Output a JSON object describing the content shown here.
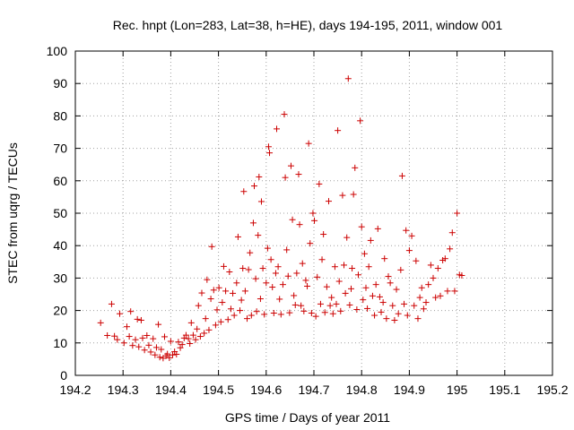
{
  "chart_data": {
    "type": "scatter",
    "title": "Rec. hnpt (Lon=283, Lat=38, h=HE), days 194-195, 2011, window 001",
    "xlabel": "GPS time / Days of year 2011",
    "ylabel": "STEC from uqrg / TECUs",
    "xlim": [
      194.2,
      195.2
    ],
    "ylim": [
      0,
      100
    ],
    "xticks": [
      194.2,
      194.3,
      194.4,
      194.5,
      194.6,
      194.7,
      194.8,
      194.9,
      195,
      195.1,
      195.2
    ],
    "xtick_labels": [
      "194.2",
      "194.3",
      "194.4",
      "194.5",
      "194.6",
      "194.7",
      "194.8",
      "194.9",
      "195",
      "195.1",
      "195.2"
    ],
    "yticks": [
      0,
      10,
      20,
      30,
      40,
      50,
      60,
      70,
      80,
      90,
      100
    ],
    "ytick_labels": [
      "0",
      "10",
      "20",
      "30",
      "40",
      "50",
      "60",
      "70",
      "80",
      "90",
      "100"
    ],
    "grid": true,
    "legend": "none",
    "marker": "plus",
    "color": "#cc0000",
    "series": [
      {
        "name": "STEC",
        "points": [
          [
            194.253,
            16.2
          ],
          [
            194.267,
            12.3
          ],
          [
            194.276,
            22.0
          ],
          [
            194.282,
            12.1
          ],
          [
            194.288,
            11.0
          ],
          [
            194.293,
            19.0
          ],
          [
            194.302,
            10.0
          ],
          [
            194.308,
            15.0
          ],
          [
            194.313,
            12.0
          ],
          [
            194.316,
            19.7
          ],
          [
            194.32,
            9.2
          ],
          [
            194.326,
            11.0
          ],
          [
            194.33,
            17.3
          ],
          [
            194.333,
            8.8
          ],
          [
            194.338,
            17.0
          ],
          [
            194.341,
            11.5
          ],
          [
            194.345,
            7.8
          ],
          [
            194.35,
            12.3
          ],
          [
            194.354,
            9.3
          ],
          [
            194.358,
            7.2
          ],
          [
            194.363,
            11.3
          ],
          [
            194.367,
            6.3
          ],
          [
            194.37,
            8.6
          ],
          [
            194.374,
            15.7
          ],
          [
            194.377,
            5.6
          ],
          [
            194.38,
            8.0
          ],
          [
            194.384,
            5.3
          ],
          [
            194.387,
            11.9
          ],
          [
            194.39,
            6.0
          ],
          [
            194.393,
            6.6
          ],
          [
            194.397,
            5.4
          ],
          [
            194.4,
            10.5
          ],
          [
            194.404,
            6.3
          ],
          [
            194.408,
            7.3
          ],
          [
            194.412,
            6.5
          ],
          [
            194.416,
            10.3
          ],
          [
            194.42,
            8.5
          ],
          [
            194.424,
            9.5
          ],
          [
            194.428,
            11.5
          ],
          [
            194.432,
            12.4
          ],
          [
            194.437,
            11.3
          ],
          [
            194.44,
            9.8
          ],
          [
            194.443,
            16.2
          ],
          [
            194.447,
            12.4
          ],
          [
            194.452,
            11.0
          ],
          [
            194.455,
            14.3
          ],
          [
            194.458,
            21.5
          ],
          [
            194.462,
            12.0
          ],
          [
            194.465,
            25.4
          ],
          [
            194.47,
            13.0
          ],
          [
            194.473,
            17.5
          ],
          [
            194.476,
            29.5
          ],
          [
            194.48,
            14.0
          ],
          [
            194.484,
            23.6
          ],
          [
            194.486,
            39.7
          ],
          [
            194.49,
            26.3
          ],
          [
            194.494,
            15.5
          ],
          [
            194.497,
            20.2
          ],
          [
            194.501,
            27.0
          ],
          [
            194.505,
            16.5
          ],
          [
            194.508,
            22.5
          ],
          [
            194.511,
            33.6
          ],
          [
            194.515,
            26.0
          ],
          [
            194.52,
            17.2
          ],
          [
            194.523,
            31.9
          ],
          [
            194.526,
            20.5
          ],
          [
            194.53,
            25.3
          ],
          [
            194.533,
            18.5
          ],
          [
            194.538,
            28.5
          ],
          [
            194.541,
            42.7
          ],
          [
            194.545,
            20.0
          ],
          [
            194.548,
            23.2
          ],
          [
            194.551,
            33.0
          ],
          [
            194.553,
            56.7
          ],
          [
            194.556,
            26.0
          ],
          [
            194.56,
            17.5
          ],
          [
            194.563,
            32.6
          ],
          [
            194.566,
            37.8
          ],
          [
            194.569,
            18.5
          ],
          [
            194.573,
            47.0
          ],
          [
            194.575,
            58.4
          ],
          [
            194.578,
            29.8
          ],
          [
            194.58,
            19.7
          ],
          [
            194.583,
            43.2
          ],
          [
            194.585,
            61.2
          ],
          [
            194.588,
            23.6
          ],
          [
            194.59,
            53.6
          ],
          [
            194.593,
            33.0
          ],
          [
            194.596,
            18.8
          ],
          [
            194.6,
            28.5
          ],
          [
            194.603,
            39.2
          ],
          [
            194.605,
            70.5
          ],
          [
            194.607,
            68.6
          ],
          [
            194.61,
            35.7
          ],
          [
            194.613,
            27.2
          ],
          [
            194.616,
            19.2
          ],
          [
            194.62,
            31.5
          ],
          [
            194.622,
            76.0
          ],
          [
            194.625,
            33.5
          ],
          [
            194.628,
            23.5
          ],
          [
            194.631,
            18.8
          ],
          [
            194.635,
            28.0
          ],
          [
            194.638,
            80.5
          ],
          [
            194.64,
            61.0
          ],
          [
            194.643,
            38.7
          ],
          [
            194.646,
            30.6
          ],
          [
            194.649,
            19.3
          ],
          [
            194.652,
            64.6
          ],
          [
            194.655,
            48.0
          ],
          [
            194.658,
            24.6
          ],
          [
            194.661,
            21.7
          ],
          [
            194.664,
            31.5
          ],
          [
            194.668,
            62.0
          ],
          [
            194.67,
            46.5
          ],
          [
            194.673,
            21.5
          ],
          [
            194.676,
            34.5
          ],
          [
            194.679,
            19.8
          ],
          [
            194.683,
            29.3
          ],
          [
            194.686,
            27.5
          ],
          [
            194.689,
            71.5
          ],
          [
            194.692,
            40.7
          ],
          [
            194.695,
            19.2
          ],
          [
            194.698,
            50.0
          ],
          [
            194.701,
            47.7
          ],
          [
            194.704,
            18.2
          ],
          [
            194.707,
            30.3
          ],
          [
            194.711,
            59.0
          ],
          [
            194.714,
            22.0
          ],
          [
            194.717,
            35.7
          ],
          [
            194.72,
            43.5
          ],
          [
            194.723,
            19.4
          ],
          [
            194.727,
            27.3
          ],
          [
            194.731,
            53.7
          ],
          [
            194.734,
            21.5
          ],
          [
            194.737,
            24.0
          ],
          [
            194.74,
            19.0
          ],
          [
            194.744,
            33.5
          ],
          [
            194.747,
            22.0
          ],
          [
            194.75,
            75.5
          ],
          [
            194.753,
            29.0
          ],
          [
            194.756,
            19.8
          ],
          [
            194.76,
            55.5
          ],
          [
            194.763,
            34.0
          ],
          [
            194.766,
            25.3
          ],
          [
            194.769,
            42.5
          ],
          [
            194.772,
            91.5
          ],
          [
            194.775,
            21.7
          ],
          [
            194.778,
            26.7
          ],
          [
            194.78,
            33.0
          ],
          [
            194.783,
            55.8
          ],
          [
            194.786,
            64.0
          ],
          [
            194.79,
            20.3
          ],
          [
            194.793,
            31.0
          ],
          [
            194.797,
            78.5
          ],
          [
            194.8,
            45.8
          ],
          [
            194.803,
            23.3
          ],
          [
            194.806,
            37.5
          ],
          [
            194.809,
            27.0
          ],
          [
            194.812,
            20.6
          ],
          [
            194.815,
            33.5
          ],
          [
            194.819,
            41.6
          ],
          [
            194.823,
            24.5
          ],
          [
            194.827,
            18.5
          ],
          [
            194.83,
            28.0
          ],
          [
            194.834,
            45.2
          ],
          [
            194.838,
            24.2
          ],
          [
            194.841,
            19.5
          ],
          [
            194.845,
            22.5
          ],
          [
            194.848,
            36.0
          ],
          [
            194.852,
            17.5
          ],
          [
            194.856,
            30.5
          ],
          [
            194.86,
            28.5
          ],
          [
            194.865,
            21.5
          ],
          [
            194.869,
            17.0
          ],
          [
            194.873,
            26.5
          ],
          [
            194.877,
            19.0
          ],
          [
            194.882,
            32.5
          ],
          [
            194.885,
            61.5
          ],
          [
            194.889,
            22.0
          ],
          [
            194.893,
            44.7
          ],
          [
            194.896,
            18.5
          ],
          [
            194.9,
            38.5
          ],
          [
            194.905,
            43.0
          ],
          [
            194.91,
            21.5
          ],
          [
            194.914,
            35.3
          ],
          [
            194.918,
            17.5
          ],
          [
            194.922,
            24.0
          ],
          [
            194.926,
            27.0
          ],
          [
            194.93,
            20.5
          ],
          [
            194.935,
            22.5
          ],
          [
            194.94,
            28.0
          ],
          [
            194.945,
            34.0
          ],
          [
            194.95,
            30.0
          ],
          [
            194.955,
            24.0
          ],
          [
            194.96,
            33.0
          ],
          [
            194.965,
            24.5
          ],
          [
            194.97,
            35.5
          ],
          [
            194.975,
            36.0
          ],
          [
            194.98,
            26.0
          ],
          [
            194.985,
            39.0
          ],
          [
            194.99,
            44.0
          ],
          [
            194.995,
            26.0
          ],
          [
            195.0,
            50.0
          ],
          [
            195.005,
            31.0
          ],
          [
            195.01,
            30.8
          ]
        ]
      }
    ]
  }
}
